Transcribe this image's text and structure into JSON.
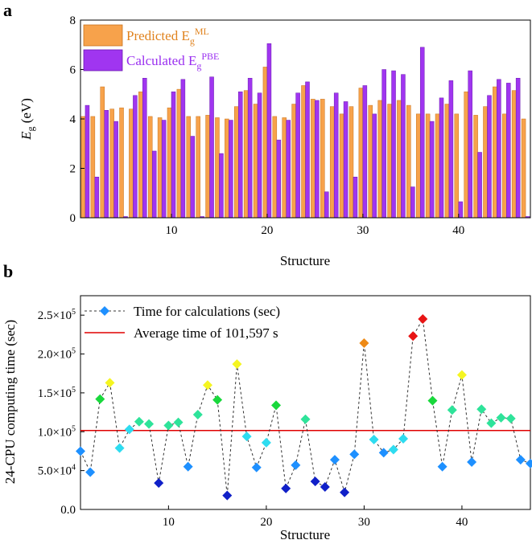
{
  "chart_data": [
    {
      "panel_label": "a",
      "type": "bar",
      "xlabel": "Structure",
      "ylabel_main": "E",
      "ylabel_sub": "g",
      "ylabel_unit": " (eV)",
      "xlim": [
        0.5,
        47.5
      ],
      "ylim": [
        0,
        8
      ],
      "xticks": [
        10,
        20,
        30,
        40
      ],
      "yticks": [
        0,
        2,
        4,
        6,
        8
      ],
      "legend_position": "top-left",
      "categories": [
        1,
        2,
        3,
        4,
        5,
        6,
        7,
        8,
        9,
        10,
        11,
        12,
        13,
        14,
        15,
        16,
        17,
        18,
        19,
        20,
        21,
        22,
        23,
        24,
        25,
        26,
        27,
        28,
        29,
        30,
        31,
        32,
        33,
        34,
        35,
        36,
        37,
        38,
        39,
        40,
        41,
        42,
        43,
        44,
        45,
        46,
        47
      ],
      "series": [
        {
          "name": "Predicted",
          "legend_main": "Predicted E",
          "legend_sub": "g",
          "legend_sup": "ML",
          "color": "#f7a24b",
          "stroke": "#c8721c",
          "values": [
            4.1,
            4.1,
            5.3,
            4.4,
            4.45,
            4.4,
            5.1,
            4.1,
            4.05,
            4.45,
            5.2,
            4.1,
            4.1,
            4.15,
            4.05,
            4.0,
            4.5,
            5.15,
            4.6,
            6.1,
            4.1,
            4.05,
            4.6,
            5.35,
            4.8,
            4.8,
            4.5,
            4.2,
            4.5,
            5.25,
            4.55,
            4.75,
            4.6,
            4.75,
            4.55,
            4.2,
            4.2,
            4.2,
            4.6,
            4.2,
            5.1,
            4.15,
            4.5,
            5.3,
            4.2,
            5.15,
            4.0
          ]
        },
        {
          "name": "Calculated",
          "legend_main": "Calculated E",
          "legend_sub": "g",
          "legend_sup": "PBE",
          "color": "#a035f0",
          "stroke": "#6a1cb0",
          "values": [
            4.55,
            1.65,
            4.35,
            3.9,
            0.05,
            4.95,
            5.65,
            2.7,
            3.95,
            5.1,
            5.6,
            3.3,
            0.05,
            5.7,
            2.6,
            3.95,
            5.1,
            5.65,
            5.05,
            7.05,
            3.15,
            3.95,
            5.05,
            5.5,
            4.75,
            1.05,
            5.05,
            4.7,
            1.65,
            5.35,
            4.2,
            6.0,
            5.95,
            5.8,
            1.25,
            6.9,
            3.9,
            4.85,
            5.55,
            0.65,
            5.95,
            2.65,
            4.95,
            5.6,
            5.45,
            5.65,
            0.05
          ]
        }
      ]
    },
    {
      "panel_label": "b",
      "type": "line",
      "xlabel": "Structure",
      "ylabel": "24-CPU computing time (sec)",
      "xlim": [
        1,
        47
      ],
      "ylim": [
        0,
        275000
      ],
      "xticks": [
        10,
        20,
        30,
        40
      ],
      "yticks": [
        {
          "value": 0,
          "main": "0.0",
          "exp": ""
        },
        {
          "value": 50000,
          "main": "5.0×10",
          "exp": "4"
        },
        {
          "value": 100000,
          "main": "1.0×10",
          "exp": "5"
        },
        {
          "value": 150000,
          "main": "1.5×10",
          "exp": "5"
        },
        {
          "value": 200000,
          "main": "2.0×10",
          "exp": "5"
        },
        {
          "value": 250000,
          "main": "2.5×10",
          "exp": "5"
        }
      ],
      "legend_position": "top-left",
      "legend": [
        "Time for calculations (sec)",
        "Average time of 101,597 s"
      ],
      "average": 101597,
      "line_color": "#333333",
      "legend_marker_color": "#1e90ff",
      "average_color": "#e00000",
      "x": [
        1,
        2,
        3,
        4,
        5,
        6,
        7,
        8,
        9,
        10,
        11,
        12,
        13,
        14,
        15,
        16,
        17,
        18,
        19,
        20,
        21,
        22,
        23,
        24,
        25,
        26,
        27,
        28,
        29,
        30,
        31,
        32,
        33,
        34,
        35,
        36,
        37,
        38,
        39,
        40,
        41,
        42,
        43,
        44,
        45,
        46,
        47
      ],
      "values": [
        75000,
        48000,
        142000,
        163000,
        79000,
        103000,
        113000,
        110000,
        34000,
        108000,
        112000,
        55000,
        122000,
        160000,
        141000,
        18000,
        187000,
        94000,
        54000,
        86000,
        134000,
        27000,
        57000,
        116000,
        36000,
        29000,
        64000,
        22000,
        71000,
        214000,
        90000,
        73000,
        77000,
        91000,
        223000,
        245000,
        140000,
        55000,
        128000,
        173000,
        61000,
        129000,
        111000,
        118000,
        117000,
        64000,
        59000
      ],
      "marker_colors": [
        "#1e90ff",
        "#1e90ff",
        "#19d83c",
        "#f5f520",
        "#2edcf0",
        "#2edcf0",
        "#2ee39a",
        "#2ee39a",
        "#1020c8",
        "#2ee39a",
        "#2ee39a",
        "#1e90ff",
        "#2ee39a",
        "#f5f520",
        "#19d83c",
        "#1020c8",
        "#f5f520",
        "#2edcf0",
        "#1e90ff",
        "#2edcf0",
        "#19d83c",
        "#1020c8",
        "#1e90ff",
        "#2ee39a",
        "#1020c8",
        "#1020c8",
        "#1e90ff",
        "#1020c8",
        "#1e90ff",
        "#ee8a16",
        "#2edcf0",
        "#1e90ff",
        "#2edcf0",
        "#2edcf0",
        "#e81414",
        "#e81414",
        "#19d83c",
        "#1e90ff",
        "#2ee39a",
        "#f5f520",
        "#1e90ff",
        "#2ee39a",
        "#2ee39a",
        "#2ee39a",
        "#2ee39a",
        "#1e90ff",
        "#1e90ff"
      ]
    }
  ]
}
